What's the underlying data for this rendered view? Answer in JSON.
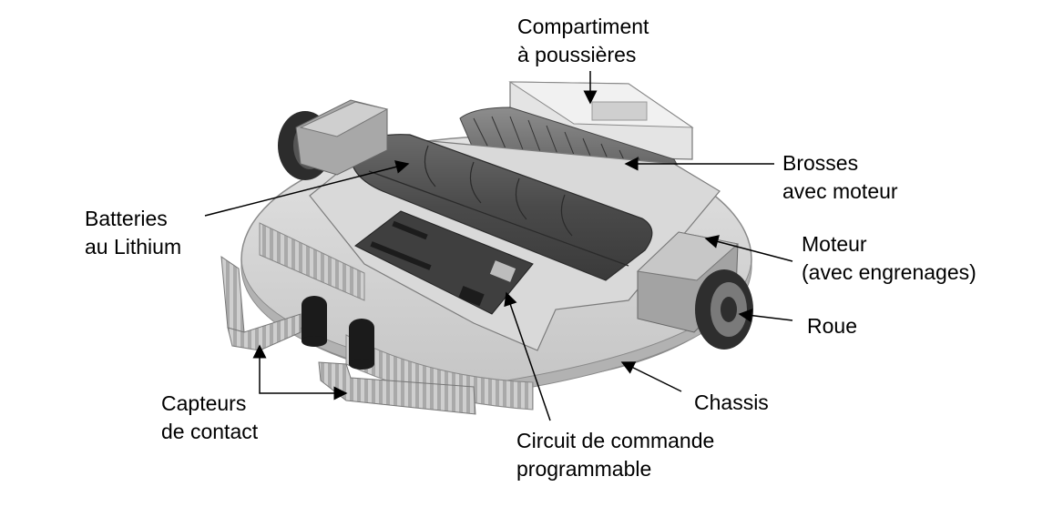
{
  "labels": {
    "compartiment": {
      "line1": "Compartiment",
      "line2": "à poussières"
    },
    "brosses": {
      "line1": "Brosses",
      "line2": "avec moteur"
    },
    "batteries": {
      "line1": "Batteries",
      "line2": "au Lithium"
    },
    "moteur": {
      "line1": "Moteur",
      "line2": "(avec engrenages)"
    },
    "roue": {
      "line1": "Roue"
    },
    "chassis": {
      "line1": "Chassis"
    },
    "capteurs": {
      "line1": "Capteurs",
      "line2": "de contact"
    },
    "circuit": {
      "line1": "Circuit de commande",
      "line2": "programmable"
    }
  },
  "colors": {
    "text": "#000000",
    "chassis": "#d4d4d4",
    "dark_part": "#555555",
    "mid_part": "#9a9a9a",
    "light_part": "#e6e6e6",
    "board": "#3c3c3c"
  }
}
